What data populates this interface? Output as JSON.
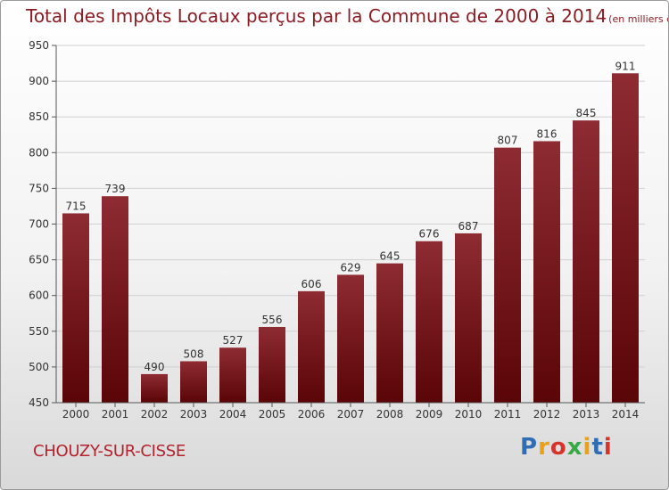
{
  "title": "Total des Impôts Locaux perçus par la Commune de 2000 à 2014",
  "unit": "(en milliers d'€)",
  "commune": "CHOUZY-SUR-CISSE",
  "brand": {
    "letters": [
      "P",
      "r",
      "o",
      "x",
      "i",
      "t",
      "i"
    ],
    "colors": [
      "#2f6db5",
      "#e9a11a",
      "#d6342b",
      "#36a845",
      "#e9a11a",
      "#2f6db5",
      "#d6342b"
    ]
  },
  "colors": {
    "bar_top": "#8e2b33",
    "bar_bottom": "#5a0508",
    "text": "#8a1c24"
  },
  "chart_data": {
    "type": "bar",
    "categories": [
      "2000",
      "2001",
      "2002",
      "2003",
      "2004",
      "2005",
      "2006",
      "2007",
      "2008",
      "2009",
      "2010",
      "2011",
      "2012",
      "2013",
      "2014"
    ],
    "values": [
      715,
      739,
      490,
      508,
      527,
      556,
      606,
      629,
      645,
      676,
      687,
      807,
      816,
      845,
      911
    ],
    "ylim": [
      450,
      950
    ],
    "yticks": [
      450,
      500,
      550,
      600,
      650,
      700,
      750,
      800,
      850,
      900,
      950
    ],
    "grid": true,
    "data_labels": true
  }
}
